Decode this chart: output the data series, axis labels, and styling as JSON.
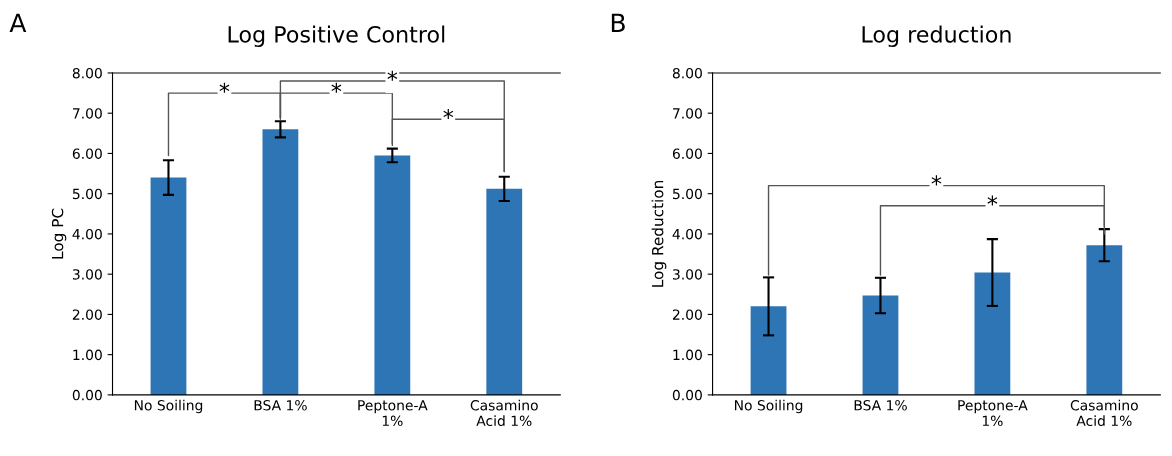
{
  "chart_data": [
    {
      "type": "bar",
      "title": "Log Positive Control",
      "ylabel": "Log PC",
      "categories": [
        "No Soiling",
        "BSA 1%",
        "Peptone-A\n1%",
        "Casamino\nAcid 1%"
      ],
      "values": [
        5.4,
        6.6,
        5.95,
        5.12
      ],
      "errors": [
        0.43,
        0.2,
        0.17,
        0.3
      ],
      "color": "#2e75b6",
      "ylim": [
        0,
        8
      ],
      "yticks": [
        {
          "value": 0,
          "label": "0.00"
        },
        {
          "value": 1,
          "label": "1.00"
        },
        {
          "value": 2,
          "label": "2.00"
        },
        {
          "value": 3,
          "label": "3.00"
        },
        {
          "value": 4,
          "label": "4.00"
        },
        {
          "value": 5,
          "label": "5.00"
        },
        {
          "value": 6,
          "label": "6.00"
        },
        {
          "value": 7,
          "label": "7.00"
        },
        {
          "value": 8,
          "label": "8.00"
        }
      ],
      "grid": false,
      "legend": false,
      "annotations": [
        "A",
        {
          "text": "*",
          "y": 7.5
        },
        {
          "text": "*",
          "y": 7.5
        },
        {
          "text": "*",
          "y": 7.8
        },
        {
          "text": "*",
          "y": 6.85
        }
      ]
    },
    {
      "type": "bar",
      "title": "Log reduction",
      "ylabel": "Log Reduction",
      "categories": [
        "No Soiling",
        "BSA 1%",
        "Peptone-A\n1%",
        "Casamino\nAcid 1%"
      ],
      "values": [
        2.2,
        2.47,
        3.04,
        3.72
      ],
      "errors": [
        0.72,
        0.44,
        0.83,
        0.4
      ],
      "color": "#2e75b6",
      "ylim": [
        0,
        8
      ],
      "yticks": [
        {
          "value": 0,
          "label": "0.00"
        },
        {
          "value": 1,
          "label": "1.00"
        },
        {
          "value": 2,
          "label": "2.00"
        },
        {
          "value": 3,
          "label": "3.00"
        },
        {
          "value": 4,
          "label": "4.00"
        },
        {
          "value": 5,
          "label": "5.00"
        },
        {
          "value": 6,
          "label": "6.00"
        },
        {
          "value": 7,
          "label": "7.00"
        },
        {
          "value": 8,
          "label": "8.00"
        }
      ],
      "grid": false,
      "legend": false,
      "annotations": [
        "B",
        {
          "text": "*",
          "y": 5.2
        },
        {
          "text": "*",
          "y": 4.7
        }
      ]
    }
  ]
}
